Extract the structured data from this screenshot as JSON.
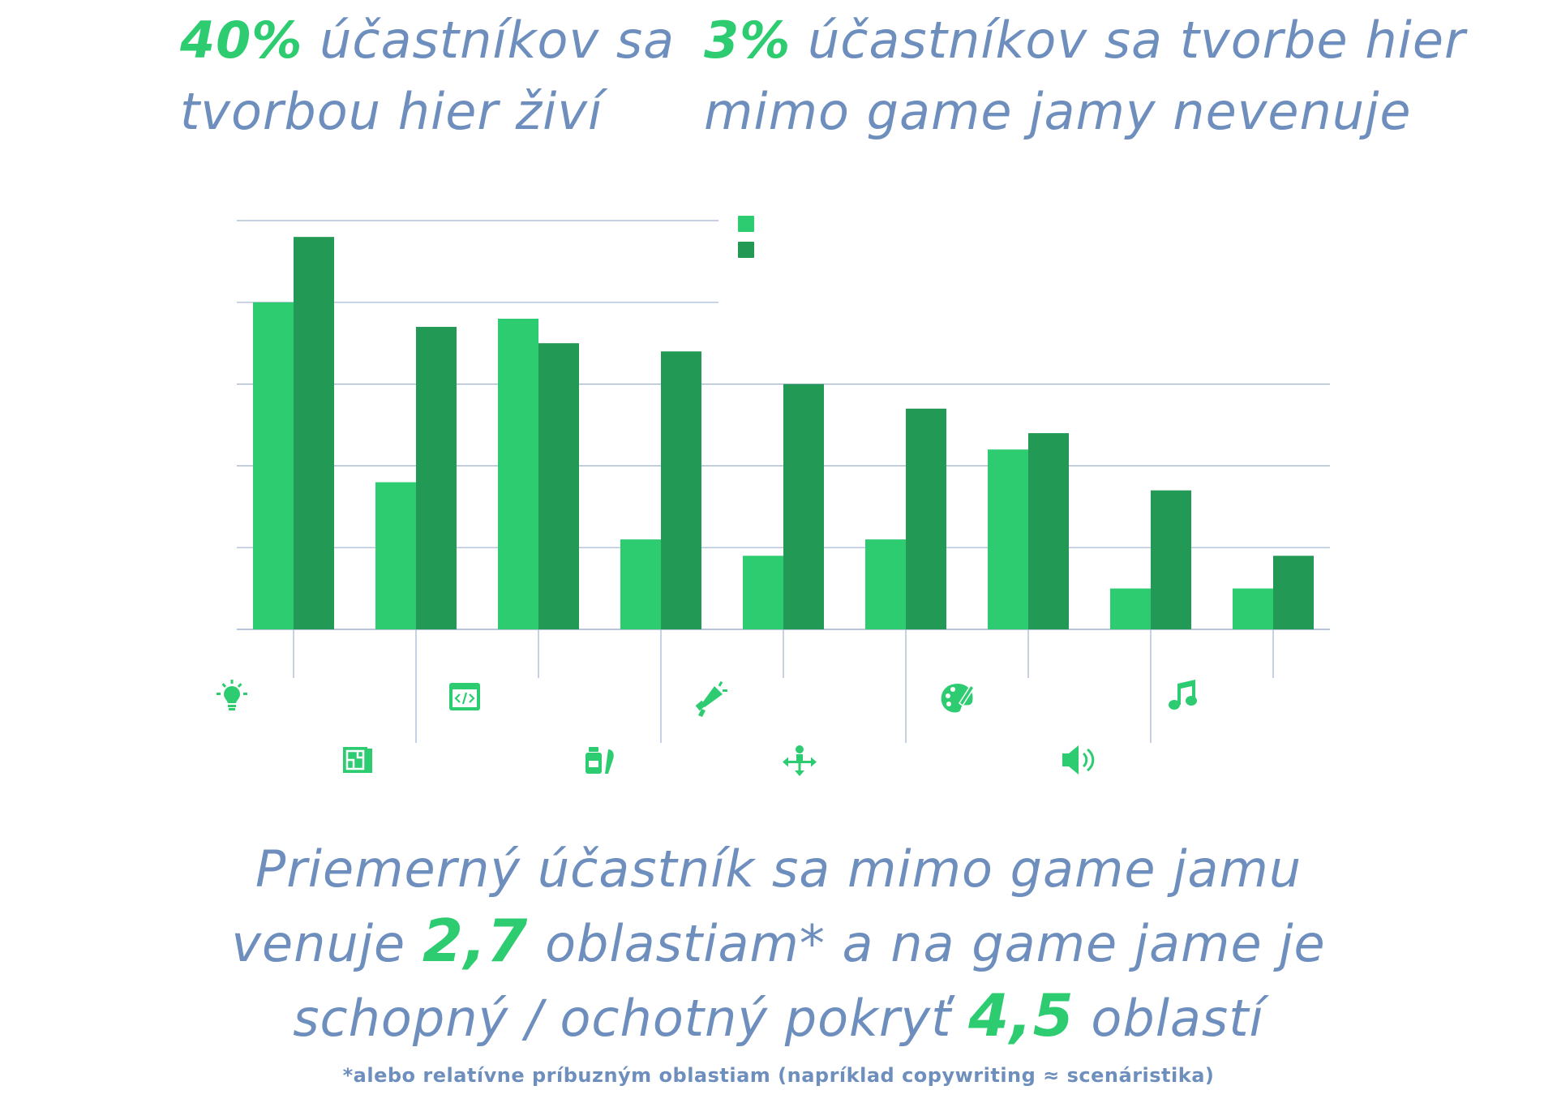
{
  "stats": {
    "left": {
      "value": "40%",
      "line1_rest": " účastníkov sa",
      "line2": "tvorbou hier živí"
    },
    "right": {
      "value": "3%",
      "line1_rest": " účastníkov sa tvorbe hier",
      "line2": "mimo game jamy nevenuje"
    }
  },
  "summary": {
    "part1": "Priemerný účastník sa mimo game jamu",
    "part2a": "venuje ",
    "value1": "2,7",
    "part2b": " oblastiam* a na game jame je",
    "part3a": "schopný / ochotný pokryť ",
    "value2": "4,5",
    "part3b": " oblastí"
  },
  "footnote": "*alebo relatívne príbuzným oblastiam (napríklad copywriting ≈ scenáristika)",
  "colors": {
    "series1": "#2ecc71",
    "series2": "#229954",
    "grid": "#9fb3cf",
    "text": "#6e8fbd"
  },
  "chart_data": {
    "type": "bar",
    "categories": [
      "idea-icon",
      "level-map-icon",
      "code-icon",
      "writing-icon",
      "marketing-icon",
      "user-testing-icon",
      "art-palette-icon",
      "sound-icon",
      "music-icon"
    ],
    "series": [
      {
        "values": [
          40,
          18,
          38,
          11,
          9,
          11,
          22,
          5,
          5
        ]
      },
      {
        "values": [
          48,
          37,
          35,
          34,
          30,
          27,
          24,
          17,
          9
        ]
      }
    ],
    "ylim": [
      0,
      50
    ],
    "grid": true,
    "legend_position": "top-right"
  }
}
